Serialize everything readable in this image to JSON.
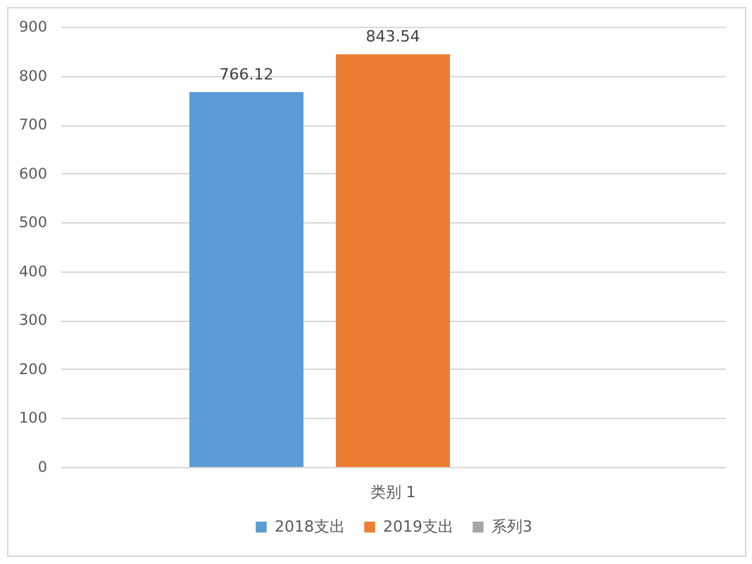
{
  "chart_data": {
    "type": "bar",
    "categories": [
      "类别 1"
    ],
    "series": [
      {
        "name": "2018支出",
        "color": "#5b9bd5",
        "values": [
          766.12
        ]
      },
      {
        "name": "2019支出",
        "color": "#ed7d31",
        "values": [
          843.54
        ]
      },
      {
        "name": "系列3",
        "color": "#a5a5a5",
        "values": [
          null
        ]
      }
    ],
    "ylim": [
      0,
      900
    ],
    "yticks": [
      0,
      100,
      200,
      300,
      400,
      500,
      600,
      700,
      800,
      900
    ],
    "grid": "y",
    "legend": "bottom",
    "data_labels": true
  }
}
